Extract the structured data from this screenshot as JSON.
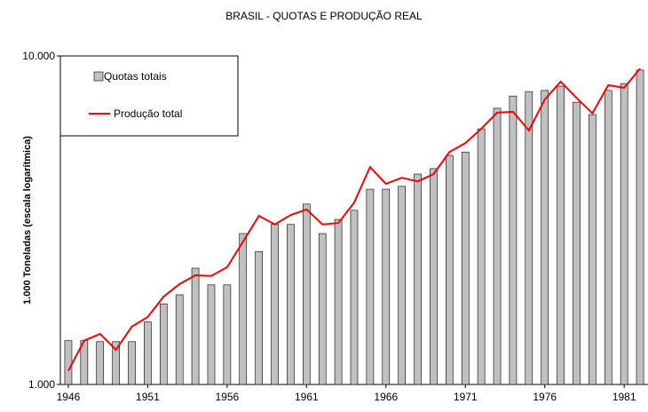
{
  "chart_data": {
    "type": "bar-line",
    "title": "BRASIL - QUOTAS E PRODUÇÃO REAL",
    "ylabel": "1.000 Toneladas (escala logarítmica)",
    "x": [
      1946,
      1947,
      1948,
      1949,
      1950,
      1951,
      1952,
      1953,
      1954,
      1955,
      1956,
      1957,
      1958,
      1959,
      1960,
      1961,
      1962,
      1963,
      1964,
      1965,
      1966,
      1967,
      1968,
      1969,
      1970,
      1971,
      1972,
      1973,
      1974,
      1975,
      1976,
      1977,
      1978,
      1979,
      1980,
      1981,
      1982
    ],
    "xlim": [
      1945.5,
      1982.5
    ],
    "xticks": [
      1946,
      1951,
      1956,
      1961,
      1966,
      1971,
      1976,
      1981
    ],
    "ylim": [
      1000,
      10000
    ],
    "log_scale": true,
    "yticks": [
      {
        "value": 1000,
        "label": "1.000"
      },
      {
        "value": 10000,
        "label": "10.000"
      }
    ],
    "legend": "top-left",
    "series": [
      {
        "name": "Quotas totais",
        "kind": "bar",
        "color": "#c0c0c0",
        "values": [
          1360,
          1360,
          1350,
          1350,
          1350,
          1550,
          1760,
          1875,
          2260,
          2010,
          2010,
          2880,
          2540,
          3070,
          3070,
          3540,
          2880,
          3180,
          3390,
          3930,
          3930,
          4010,
          4370,
          4540,
          4980,
          5100,
          6000,
          6930,
          7550,
          7790,
          7850,
          8090,
          7230,
          6630,
          7850,
          8240,
          9060
        ]
      },
      {
        "name": "Produção total",
        "kind": "line",
        "color": "#ff0000",
        "values": [
          1100,
          1360,
          1425,
          1275,
          1500,
          1605,
          1850,
          2020,
          2150,
          2140,
          2275,
          2720,
          3260,
          3070,
          3280,
          3410,
          3070,
          3100,
          3580,
          4590,
          4080,
          4260,
          4150,
          4370,
          5100,
          5430,
          6000,
          6720,
          6760,
          5930,
          7370,
          8350,
          7450,
          6690,
          8150,
          8000,
          9150
        ]
      }
    ]
  }
}
